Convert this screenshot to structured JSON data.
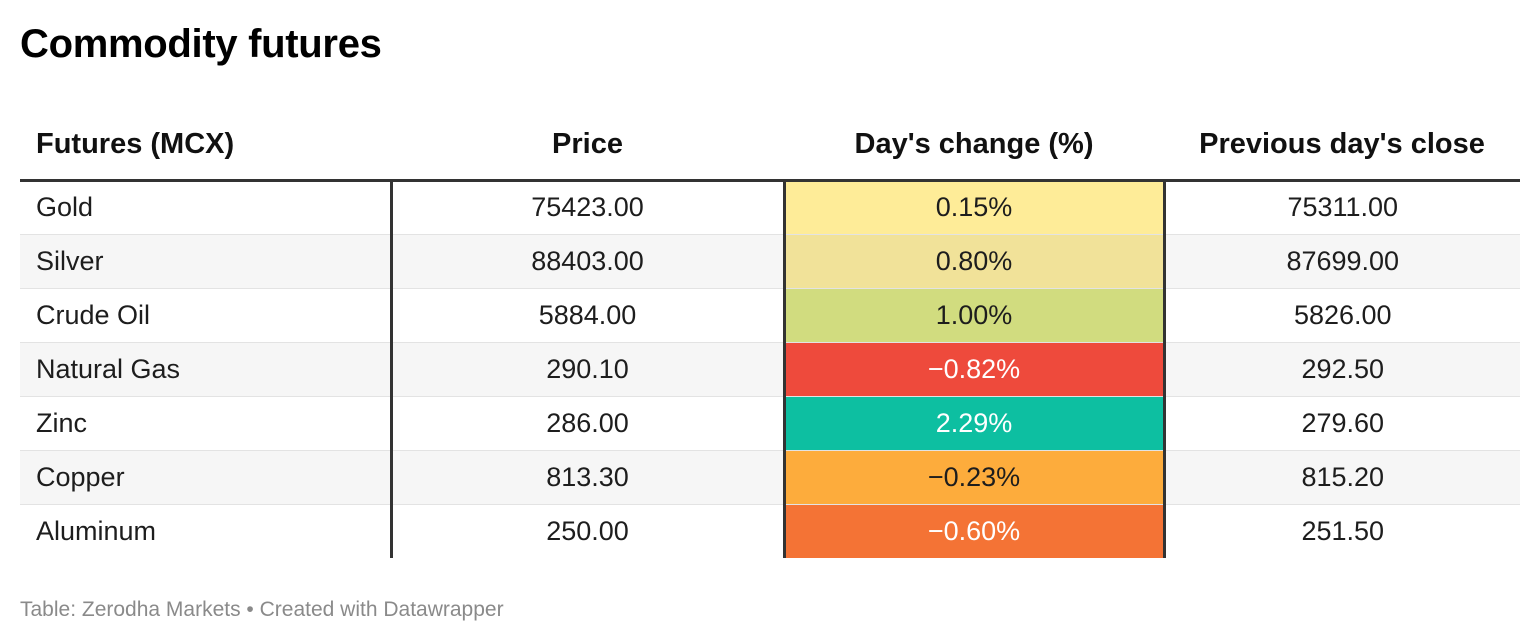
{
  "title": "Commodity futures",
  "footer": "Table: Zerodha Markets • Created with Datawrapper",
  "chart_data": {
    "type": "table",
    "title": "Commodity futures",
    "columns": [
      "Futures (MCX)",
      "Price",
      "Day's change (%)",
      "Previous day's close"
    ],
    "rows": [
      {
        "name": "Gold",
        "price": "75423.00",
        "change": "0.15%",
        "prev": "75311.00",
        "change_color": "#feec98",
        "text_color": "#1d1d1d"
      },
      {
        "name": "Silver",
        "price": "88403.00",
        "change": "0.80%",
        "prev": "87699.00",
        "change_color": "#f1e299",
        "text_color": "#1d1d1d"
      },
      {
        "name": "Crude Oil",
        "price": "5884.00",
        "change": "1.00%",
        "prev": "5826.00",
        "change_color": "#d1dc7f",
        "text_color": "#1d1d1d"
      },
      {
        "name": "Natural Gas",
        "price": "290.10",
        "change": "−0.82%",
        "prev": "292.50",
        "change_color": "#ee4a3c",
        "text_color": "#ffffff"
      },
      {
        "name": "Zinc",
        "price": "286.00",
        "change": "2.29%",
        "prev": "279.60",
        "change_color": "#0dbfa1",
        "text_color": "#ffffff"
      },
      {
        "name": "Copper",
        "price": "813.30",
        "change": "−0.23%",
        "prev": "815.20",
        "change_color": "#fdac3c",
        "text_color": "#1d1d1d"
      },
      {
        "name": "Aluminum",
        "price": "250.00",
        "change": "−0.60%",
        "prev": "251.50",
        "change_color": "#f47335",
        "text_color": "#ffffff"
      }
    ]
  }
}
